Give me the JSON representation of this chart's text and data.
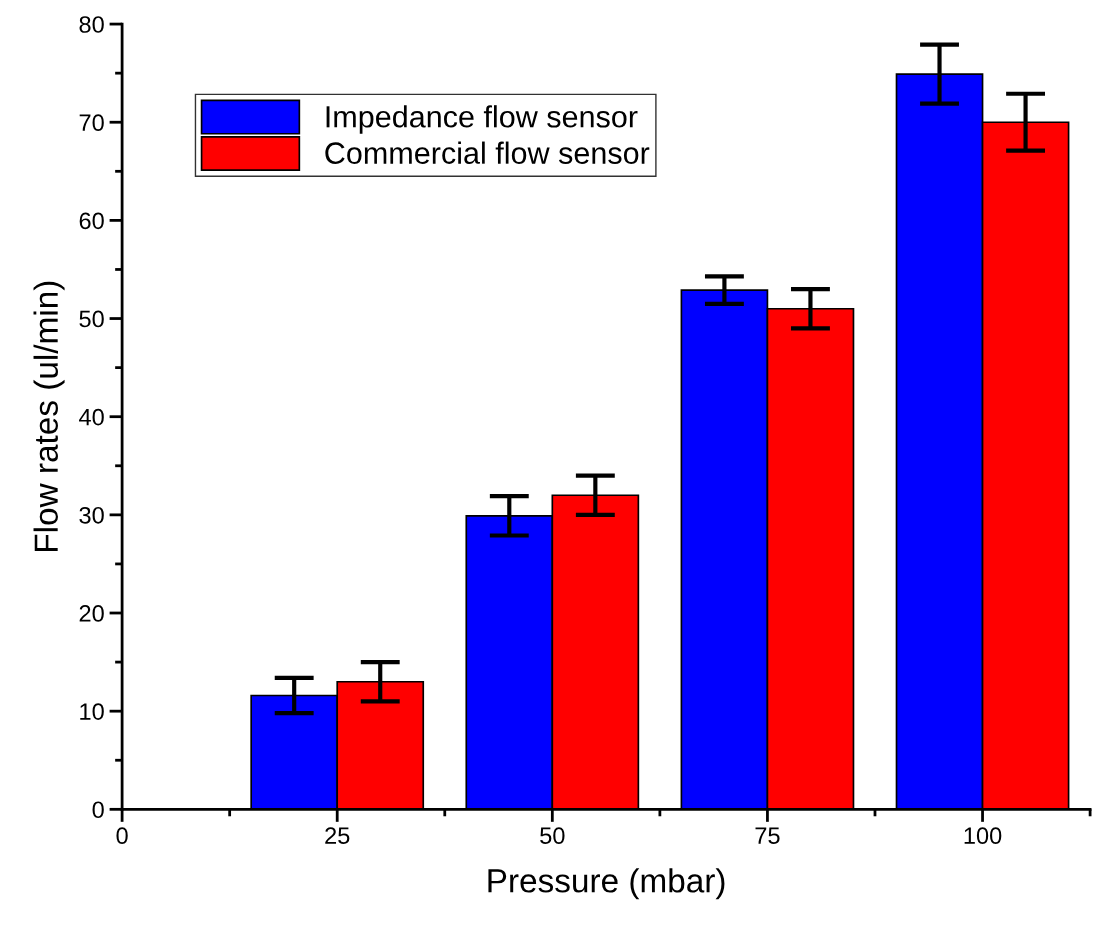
{
  "chart_data": {
    "type": "bar",
    "xlabel": "Pressure (mbar)",
    "ylabel": "Flow rates (ul/min)",
    "x": [
      25,
      50,
      75,
      100
    ],
    "series": [
      {
        "name": "Impedance flow sensor",
        "color": "#0000ff",
        "values": [
          11.6,
          29.9,
          52.9,
          74.9
        ],
        "errors": [
          1.8,
          2,
          1.4,
          3
        ]
      },
      {
        "name": "Commercial flow sensor",
        "color": "#ff0000",
        "values": [
          13,
          32,
          51,
          70
        ],
        "errors": [
          2,
          2,
          2,
          2.9
        ]
      }
    ],
    "xlim": [
      0,
      112.5
    ],
    "xticks": [
      0,
      25,
      50,
      75,
      100
    ],
    "ylim": [
      0,
      80
    ],
    "yticks": [
      0,
      10,
      20,
      30,
      40,
      50,
      60,
      70,
      80
    ],
    "grid": false,
    "legend": "top left"
  }
}
